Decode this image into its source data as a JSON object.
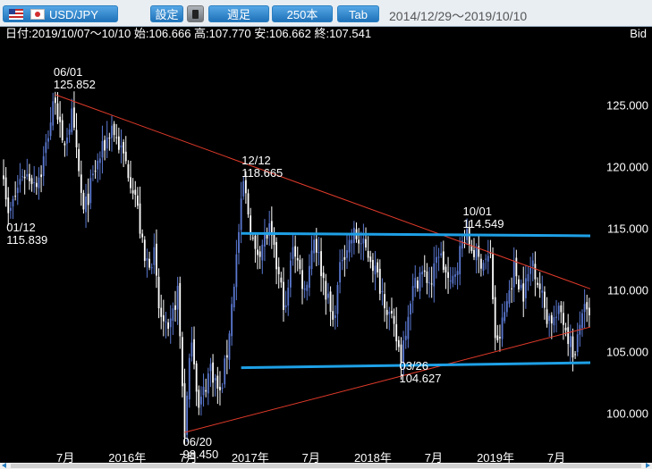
{
  "toolbar": {
    "pair": "USD/JPY",
    "settings": "設定",
    "period": "週足",
    "bars": "250本",
    "tab": "Tab",
    "range": "2014/12/29～2019/10/10"
  },
  "info": {
    "ohlc": "日付:2019/10/07～10/10 始:106.666 高:107.770 安:106.662 終:107.541",
    "price_type": "Bid"
  },
  "colors": {
    "background": "#000000",
    "candle_up": "#5a78d0",
    "candle_down": "#ffffff",
    "trendline": "#e03a2a",
    "channel": "#1ea0e6",
    "text": "#ffffff"
  },
  "chart_data": {
    "type": "candlestick",
    "interval": "weekly",
    "ylim": [
      97.0,
      130.2
    ],
    "x_start": "2014-12-29",
    "x_end": "2019-10-10",
    "yticks": [
      "125.000",
      "120.000",
      "115.000",
      "110.000",
      "105.000",
      "100.000"
    ],
    "xticks": [
      {
        "date": "2015-07-01",
        "label": "7月"
      },
      {
        "date": "2016-01-01",
        "label": "2016年"
      },
      {
        "date": "2016-07-01",
        "label": "7月"
      },
      {
        "date": "2017-01-01",
        "label": "2017年"
      },
      {
        "date": "2017-07-01",
        "label": "7月"
      },
      {
        "date": "2018-01-01",
        "label": "2018年"
      },
      {
        "date": "2018-07-01",
        "label": "7月"
      },
      {
        "date": "2019-01-01",
        "label": "2019年"
      },
      {
        "date": "2019-07-01",
        "label": "7月"
      }
    ],
    "annotations": [
      {
        "date": "06/01",
        "value": "125.852",
        "at": "2015-06-01",
        "price": 125.852,
        "pos": "above"
      },
      {
        "date": "01/12",
        "value": "115.839",
        "at": "2015-01-12",
        "price": 115.839,
        "pos": "below"
      },
      {
        "date": "12/12",
        "value": "118.665",
        "at": "2016-12-12",
        "price": 118.665,
        "pos": "above"
      },
      {
        "date": "10/01",
        "value": "114.549",
        "at": "2018-10-01",
        "price": 114.549,
        "pos": "above"
      },
      {
        "date": "03/26",
        "value": "104.627",
        "at": "2018-03-26",
        "price": 104.627,
        "pos": "below"
      },
      {
        "date": "06/20",
        "value": "98.450",
        "at": "2016-06-20",
        "price": 98.45,
        "pos": "below"
      }
    ],
    "trendlines": [
      {
        "kind": "resistance",
        "points": [
          [
            "2015-06-01",
            125.852
          ],
          [
            "2019-10-10",
            110.1
          ]
        ]
      },
      {
        "kind": "support",
        "points": [
          [
            "2016-06-20",
            98.45
          ],
          [
            "2019-10-10",
            107.0
          ]
        ]
      }
    ],
    "channels": [
      {
        "points": [
          [
            "2016-12-05",
            114.6
          ],
          [
            "2019-10-10",
            114.4
          ]
        ]
      },
      {
        "points": [
          [
            "2016-12-05",
            103.7
          ],
          [
            "2019-10-10",
            104.1
          ]
        ]
      }
    ],
    "path": [
      [
        "2014-12-29",
        119.8
      ],
      [
        "2015-01-12",
        115.839
      ],
      [
        "2015-02-23",
        119.5
      ],
      [
        "2015-04-06",
        118.9
      ],
      [
        "2015-04-20",
        119.6
      ],
      [
        "2015-06-01",
        125.852
      ],
      [
        "2015-06-22",
        121.5
      ],
      [
        "2015-07-20",
        124.1
      ],
      [
        "2015-08-24",
        116.2
      ],
      [
        "2015-09-28",
        119.8
      ],
      [
        "2015-11-16",
        123.3
      ],
      [
        "2015-12-28",
        120.3
      ],
      [
        "2016-01-25",
        117.8
      ],
      [
        "2016-02-22",
        112.2
      ],
      [
        "2016-03-21",
        112.8
      ],
      [
        "2016-04-04",
        108.4
      ],
      [
        "2016-05-02",
        106.1
      ],
      [
        "2016-05-30",
        110.0
      ],
      [
        "2016-06-20",
        98.45
      ],
      [
        "2016-07-11",
        106.5
      ],
      [
        "2016-08-01",
        100.3
      ],
      [
        "2016-09-05",
        103.8
      ],
      [
        "2016-10-03",
        101.4
      ],
      [
        "2016-10-24",
        104.9
      ],
      [
        "2016-11-14",
        110.7
      ],
      [
        "2016-12-12",
        118.665
      ],
      [
        "2017-01-16",
        112.8
      ],
      [
        "2017-02-27",
        114.8
      ],
      [
        "2017-04-17",
        108.2
      ],
      [
        "2017-05-08",
        113.9
      ],
      [
        "2017-06-12",
        109.9
      ],
      [
        "2017-07-10",
        114.4
      ],
      [
        "2017-09-04",
        107.3
      ],
      [
        "2017-10-02",
        112.9
      ],
      [
        "2017-11-06",
        114.5
      ],
      [
        "2017-12-25",
        112.7
      ],
      [
        "2018-02-05",
        109.3
      ],
      [
        "2018-03-26",
        104.627
      ],
      [
        "2018-04-23",
        109.5
      ],
      [
        "2018-05-21",
        111.4
      ],
      [
        "2018-06-25",
        110.6
      ],
      [
        "2018-07-16",
        113.2
      ],
      [
        "2018-08-20",
        110.1
      ],
      [
        "2018-10-01",
        114.549
      ],
      [
        "2018-11-12",
        112.4
      ],
      [
        "2018-12-17",
        112.6
      ],
      [
        "2019-01-03",
        104.9
      ],
      [
        "2019-02-25",
        111.8
      ],
      [
        "2019-03-25",
        109.8
      ],
      [
        "2019-04-22",
        112.4
      ],
      [
        "2019-06-03",
        107.9
      ],
      [
        "2019-06-24",
        107.6
      ],
      [
        "2019-07-15",
        108.2
      ],
      [
        "2019-08-26",
        104.5
      ],
      [
        "2019-09-16",
        108.5
      ],
      [
        "2019-10-07",
        107.541
      ]
    ]
  }
}
